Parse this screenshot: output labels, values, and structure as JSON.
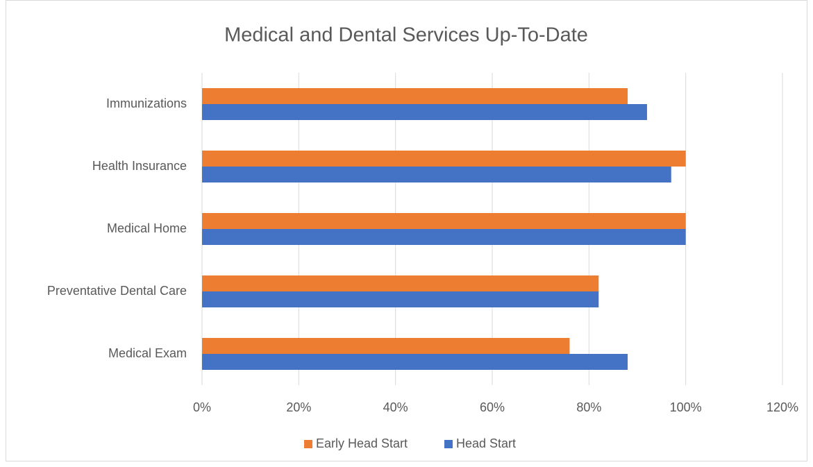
{
  "chart_data": {
    "type": "hbar",
    "title": "Medical and Dental Services Up-To-Date",
    "categories": [
      "Immunizations",
      "Health Insurance",
      "Medical Home",
      "Preventative Dental Care",
      "Medical Exam"
    ],
    "series": [
      {
        "name": "Early Head Start",
        "color": "#ed7d31",
        "values": [
          88,
          100,
          100,
          82,
          76
        ]
      },
      {
        "name": "Head Start",
        "color": "#4472c4",
        "values": [
          92,
          97,
          100,
          82,
          88
        ]
      }
    ],
    "xlim": [
      0,
      120
    ],
    "xticks": [
      {
        "value": 0,
        "label": "0%"
      },
      {
        "value": 20,
        "label": "20%"
      },
      {
        "value": 40,
        "label": "40%"
      },
      {
        "value": 60,
        "label": "60%"
      },
      {
        "value": 80,
        "label": "80%"
      },
      {
        "value": 100,
        "label": "100%"
      },
      {
        "value": 120,
        "label": "120%"
      }
    ],
    "grid": true,
    "legend": "bottom"
  }
}
